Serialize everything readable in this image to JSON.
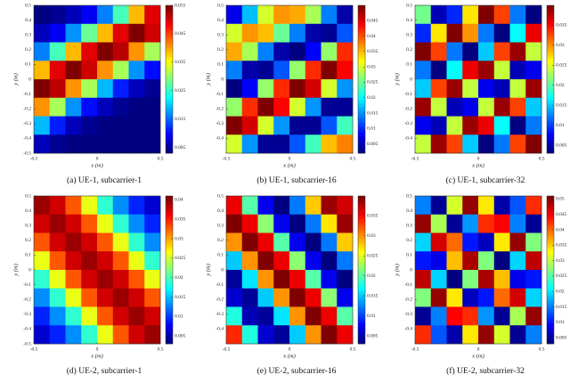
{
  "chart_data": [
    {
      "type": "heatmap",
      "caption": "(a)  UE-1, subcarrier-1",
      "x_label": "x (m)",
      "y_label": "y (m)",
      "colormap": "jet",
      "xlim": [
        -0.5,
        0.5
      ],
      "ylim": [
        -0.5,
        0.5
      ],
      "xticks": [
        -0.5,
        0,
        0.5
      ],
      "yticks": [
        -0.5,
        -0.4,
        -0.3,
        -0.2,
        -0.1,
        0,
        0.1,
        0.2,
        0.3,
        0.4,
        0.5
      ],
      "clim": [
        0.003,
        0.055
      ],
      "cticks": [
        0.005,
        0.015,
        0.025,
        0.035,
        0.045,
        0.055
      ],
      "values": [
        [
          0.003,
          0.004,
          0.006,
          0.009,
          0.016,
          0.026,
          0.039,
          0.05
        ],
        [
          0.006,
          0.009,
          0.017,
          0.028,
          0.039,
          0.05,
          0.055,
          0.051
        ],
        [
          0.016,
          0.026,
          0.039,
          0.05,
          0.055,
          0.052,
          0.041,
          0.031
        ],
        [
          0.039,
          0.05,
          0.055,
          0.051,
          0.041,
          0.031,
          0.017,
          0.01
        ],
        [
          0.055,
          0.052,
          0.041,
          0.031,
          0.019,
          0.011,
          0.006,
          0.004
        ],
        [
          0.041,
          0.031,
          0.017,
          0.01,
          0.006,
          0.004,
          0.003,
          0.003
        ],
        [
          0.019,
          0.011,
          0.006,
          0.004,
          0.003,
          0.003,
          0.003,
          0.003
        ],
        [
          0.006,
          0.004,
          0.003,
          0.003,
          0.003,
          0.003,
          0.003,
          0.003
        ]
      ]
    },
    {
      "type": "heatmap",
      "caption": "(b)  UE-1, subcarrier-16",
      "x_label": "x (m)",
      "y_label": "y (m)",
      "colormap": "jet",
      "xlim": [
        -0.5,
        0.5
      ],
      "ylim": [
        -0.5,
        0.5
      ],
      "xticks": [
        -0.5,
        0,
        0.5
      ],
      "yticks": [
        -0.4,
        -0.3,
        -0.2,
        -0.1,
        0,
        0.1,
        0.2,
        0.3,
        0.4,
        0.5
      ],
      "clim": [
        0.002,
        0.05
      ],
      "cticks": [
        0.005,
        0.01,
        0.015,
        0.02,
        0.025,
        0.03,
        0.035,
        0.04,
        0.045
      ],
      "values": [
        [
          0.007,
          0.017,
          0.03,
          0.037,
          0.036,
          0.028,
          0.014,
          0.004
        ],
        [
          0.03,
          0.037,
          0.035,
          0.025,
          0.014,
          0.004,
          0.003,
          0.012
        ],
        [
          0.036,
          0.028,
          0.014,
          0.004,
          0.002,
          0.008,
          0.027,
          0.042
        ],
        [
          0.014,
          0.004,
          0.003,
          0.012,
          0.027,
          0.042,
          0.05,
          0.044
        ],
        [
          0.002,
          0.008,
          0.027,
          0.042,
          0.05,
          0.046,
          0.03,
          0.015
        ],
        [
          0.027,
          0.042,
          0.05,
          0.044,
          0.03,
          0.015,
          0.003,
          0.003
        ],
        [
          0.05,
          0.046,
          0.03,
          0.015,
          0.003,
          0.003,
          0.012,
          0.023
        ],
        [
          0.03,
          0.015,
          0.003,
          0.003,
          0.012,
          0.023,
          0.035,
          0.038
        ]
      ]
    },
    {
      "type": "heatmap",
      "caption": "(c)  UE-1, subcarrier-32",
      "x_label": "x (m)",
      "y_label": "y (m)",
      "colormap": "jet",
      "xlim": [
        -0.5,
        0.5
      ],
      "ylim": [
        -0.5,
        0.5
      ],
      "xticks": [
        -0.5,
        0,
        0.5
      ],
      "yticks": [
        -0.4,
        -0.3,
        -0.2,
        -0.1,
        0,
        0.1,
        0.2,
        0.3,
        0.4,
        0.5
      ],
      "clim": [
        0.003,
        0.04
      ],
      "cticks": [
        0.005,
        0.01,
        0.015,
        0.02,
        0.025,
        0.03,
        0.035
      ],
      "values": [
        [
          0.021,
          0.005,
          0.009,
          0.027,
          0.04,
          0.033,
          0.012,
          0.003
        ],
        [
          0.009,
          0.027,
          0.04,
          0.03,
          0.012,
          0.003,
          0.017,
          0.036
        ],
        [
          0.04,
          0.033,
          0.012,
          0.003,
          0.015,
          0.033,
          0.039,
          0.024
        ],
        [
          0.012,
          0.003,
          0.017,
          0.036,
          0.039,
          0.024,
          0.005,
          0.007
        ],
        [
          0.015,
          0.033,
          0.039,
          0.024,
          0.007,
          0.005,
          0.024,
          0.039
        ],
        [
          0.039,
          0.024,
          0.005,
          0.007,
          0.024,
          0.039,
          0.033,
          0.015
        ],
        [
          0.007,
          0.005,
          0.024,
          0.039,
          0.036,
          0.017,
          0.003,
          0.012
        ],
        [
          0.024,
          0.039,
          0.033,
          0.015,
          0.003,
          0.012,
          0.033,
          0.04
        ]
      ]
    },
    {
      "type": "heatmap",
      "caption": "(d)  UE-2, subcarrier-1",
      "x_label": "x (m)",
      "y_label": "y (m)",
      "colormap": "jet",
      "xlim": [
        -0.5,
        0.5
      ],
      "ylim": [
        -0.5,
        0.5
      ],
      "xticks": [
        -0.5,
        0,
        0.5
      ],
      "yticks": [
        -0.5,
        -0.4,
        -0.3,
        -0.2,
        -0.1,
        0,
        0.1,
        0.2,
        0.3,
        0.4,
        0.5
      ],
      "clim": [
        0.003,
        0.041
      ],
      "cticks": [
        0.005,
        0.01,
        0.015,
        0.02,
        0.025,
        0.03,
        0.035,
        0.04
      ],
      "values": [
        [
          0.04,
          0.038,
          0.033,
          0.026,
          0.019,
          0.013,
          0.009,
          0.006
        ],
        [
          0.038,
          0.04,
          0.038,
          0.033,
          0.026,
          0.019,
          0.013,
          0.009
        ],
        [
          0.033,
          0.038,
          0.04,
          0.038,
          0.033,
          0.026,
          0.019,
          0.013
        ],
        [
          0.026,
          0.033,
          0.038,
          0.04,
          0.038,
          0.033,
          0.026,
          0.019
        ],
        [
          0.019,
          0.026,
          0.033,
          0.038,
          0.04,
          0.038,
          0.033,
          0.026
        ],
        [
          0.013,
          0.019,
          0.026,
          0.033,
          0.038,
          0.04,
          0.038,
          0.033
        ],
        [
          0.009,
          0.013,
          0.019,
          0.026,
          0.033,
          0.038,
          0.04,
          0.038
        ],
        [
          0.006,
          0.009,
          0.013,
          0.019,
          0.026,
          0.033,
          0.038,
          0.04
        ]
      ]
    },
    {
      "type": "heatmap",
      "caption": "(e)  UE-2, subcarrier-16",
      "x_label": "x (m)",
      "y_label": "y (m)",
      "colormap": "jet",
      "xlim": [
        -0.5,
        0.5
      ],
      "ylim": [
        -0.5,
        0.5
      ],
      "xticks": [
        -0.5,
        0,
        0.5
      ],
      "yticks": [
        -0.4,
        -0.3,
        -0.2,
        -0.1,
        0,
        0.1,
        0.2,
        0.3,
        0.4,
        0.5
      ],
      "clim": [
        0.003,
        0.04
      ],
      "cticks": [
        0.005,
        0.01,
        0.015,
        0.02,
        0.025,
        0.03,
        0.035
      ],
      "values": [
        [
          0.036,
          0.02,
          0.007,
          0.003,
          0.012,
          0.028,
          0.039,
          0.037
        ],
        [
          0.04,
          0.036,
          0.022,
          0.007,
          0.003,
          0.012,
          0.027,
          0.039
        ],
        [
          0.03,
          0.04,
          0.036,
          0.02,
          0.007,
          0.003,
          0.012,
          0.028
        ],
        [
          0.015,
          0.03,
          0.04,
          0.036,
          0.022,
          0.007,
          0.003,
          0.012
        ],
        [
          0.004,
          0.016,
          0.03,
          0.04,
          0.036,
          0.02,
          0.007,
          0.003
        ],
        [
          0.006,
          0.004,
          0.015,
          0.03,
          0.04,
          0.036,
          0.022,
          0.007
        ],
        [
          0.018,
          0.005,
          0.004,
          0.016,
          0.03,
          0.04,
          0.036,
          0.02
        ],
        [
          0.034,
          0.018,
          0.006,
          0.004,
          0.015,
          0.03,
          0.04,
          0.036
        ]
      ]
    },
    {
      "type": "heatmap",
      "caption": "(f)  UE-2, subcarrier-32",
      "x_label": "x (m)",
      "y_label": "y (m)",
      "colormap": "jet",
      "xlim": [
        -0.5,
        0.5
      ],
      "ylim": [
        -0.5,
        0.5
      ],
      "xticks": [
        -0.5,
        0,
        0.5
      ],
      "yticks": [
        -0.4,
        -0.3,
        -0.2,
        -0.1,
        0,
        0.1,
        0.2,
        0.3,
        0.4,
        0.5
      ],
      "clim": [
        0.003,
        0.051
      ],
      "cticks": [
        0.005,
        0.01,
        0.015,
        0.02,
        0.025,
        0.03,
        0.035,
        0.04,
        0.045,
        0.05
      ],
      "values": [
        [
          0.015,
          0.004,
          0.031,
          0.05,
          0.034,
          0.005,
          0.013,
          0.043
        ],
        [
          0.05,
          0.029,
          0.004,
          0.016,
          0.043,
          0.045,
          0.015,
          0.004
        ],
        [
          0.019,
          0.047,
          0.04,
          0.01,
          0.006,
          0.034,
          0.05,
          0.027
        ],
        [
          0.01,
          0.008,
          0.036,
          0.049,
          0.027,
          0.003,
          0.019,
          0.048
        ],
        [
          0.048,
          0.019,
          0.003,
          0.027,
          0.049,
          0.036,
          0.008,
          0.01
        ],
        [
          0.027,
          0.05,
          0.034,
          0.006,
          0.01,
          0.04,
          0.047,
          0.019
        ],
        [
          0.004,
          0.015,
          0.045,
          0.043,
          0.016,
          0.004,
          0.029,
          0.05
        ],
        [
          0.043,
          0.013,
          0.005,
          0.034,
          0.05,
          0.031,
          0.004,
          0.015
        ]
      ]
    }
  ]
}
